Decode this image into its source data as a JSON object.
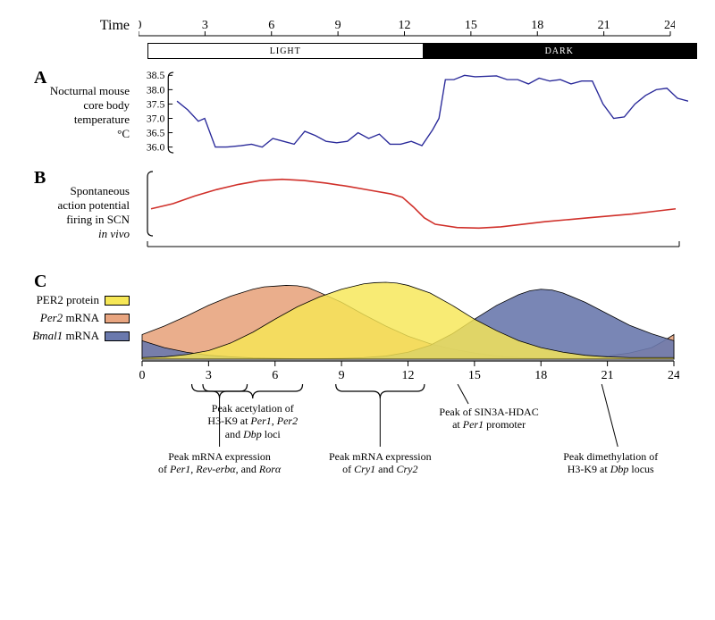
{
  "time_axis": {
    "label": "Time",
    "ticks": [
      0,
      3,
      6,
      9,
      12,
      15,
      18,
      21,
      24
    ],
    "xlim": [
      0,
      24
    ]
  },
  "lightdark": {
    "light_label": "LIGHT",
    "dark_label": "DARK"
  },
  "panelA": {
    "letter": "A",
    "label_l1": "Nocturnal mouse",
    "label_l2": "core body",
    "label_l3": "temperature",
    "label_l4": "°C",
    "yticks": [
      36.0,
      36.5,
      37.0,
      37.5,
      38.0,
      38.5
    ],
    "ylim": [
      35.8,
      38.6
    ],
    "line_color": "#2a2a9a",
    "series": [
      [
        0,
        37.6
      ],
      [
        0.5,
        37.3
      ],
      [
        1,
        36.9
      ],
      [
        1.3,
        37.0
      ],
      [
        1.8,
        36.0
      ],
      [
        2.3,
        36.0
      ],
      [
        3,
        36.05
      ],
      [
        3.5,
        36.1
      ],
      [
        4,
        36.0
      ],
      [
        4.5,
        36.3
      ],
      [
        5,
        36.2
      ],
      [
        5.5,
        36.1
      ],
      [
        6,
        36.55
      ],
      [
        6.5,
        36.4
      ],
      [
        7,
        36.2
      ],
      [
        7.5,
        36.15
      ],
      [
        8,
        36.2
      ],
      [
        8.5,
        36.5
      ],
      [
        9,
        36.3
      ],
      [
        9.5,
        36.45
      ],
      [
        10,
        36.1
      ],
      [
        10.5,
        36.1
      ],
      [
        11,
        36.2
      ],
      [
        11.5,
        36.05
      ],
      [
        12,
        36.6
      ],
      [
        12.3,
        37.0
      ],
      [
        12.6,
        38.35
      ],
      [
        13,
        38.35
      ],
      [
        13.5,
        38.5
      ],
      [
        14,
        38.45
      ],
      [
        15,
        38.48
      ],
      [
        15.5,
        38.35
      ],
      [
        16,
        38.35
      ],
      [
        16.5,
        38.2
      ],
      [
        17,
        38.4
      ],
      [
        17.5,
        38.3
      ],
      [
        18,
        38.35
      ],
      [
        18.5,
        38.2
      ],
      [
        19,
        38.3
      ],
      [
        19.5,
        38.3
      ],
      [
        20,
        37.5
      ],
      [
        20.5,
        37.0
      ],
      [
        21,
        37.05
      ],
      [
        21.5,
        37.5
      ],
      [
        22,
        37.8
      ],
      [
        22.5,
        38.0
      ],
      [
        23,
        38.05
      ],
      [
        23.5,
        37.7
      ],
      [
        24,
        37.6
      ]
    ]
  },
  "panelB": {
    "letter": "B",
    "label_l1": "Spontaneous",
    "label_l2": "action potential",
    "label_l3": "firing in SCN",
    "label_l4": "in vivo",
    "ylim": [
      0,
      1
    ],
    "line_color": "#d0302a",
    "series": [
      [
        0,
        0.42
      ],
      [
        1,
        0.5
      ],
      [
        2,
        0.62
      ],
      [
        3,
        0.72
      ],
      [
        4,
        0.8
      ],
      [
        5,
        0.86
      ],
      [
        6,
        0.88
      ],
      [
        7,
        0.86
      ],
      [
        8,
        0.82
      ],
      [
        9,
        0.77
      ],
      [
        10,
        0.71
      ],
      [
        11,
        0.65
      ],
      [
        11.5,
        0.6
      ],
      [
        12,
        0.45
      ],
      [
        12.5,
        0.28
      ],
      [
        13,
        0.18
      ],
      [
        14,
        0.13
      ],
      [
        15,
        0.12
      ],
      [
        16,
        0.14
      ],
      [
        17,
        0.18
      ],
      [
        18,
        0.22
      ],
      [
        19,
        0.25
      ],
      [
        20,
        0.28
      ],
      [
        21,
        0.31
      ],
      [
        22,
        0.34
      ],
      [
        23,
        0.38
      ],
      [
        24,
        0.42
      ]
    ]
  },
  "panelC": {
    "letter": "C",
    "legend": {
      "per2_protein": {
        "label": "PER2 protein",
        "color": "#f6e756"
      },
      "per2_mrna": {
        "label_pre": "Per2",
        "label_post": " mRNA",
        "color": "#e8a580"
      },
      "bmal1_mrna": {
        "label_pre": "Bmal1",
        "label_post": " mRNA",
        "color": "#6a79ad"
      }
    },
    "ylim": [
      0,
      1
    ],
    "xticks": [
      0,
      3,
      6,
      9,
      12,
      15,
      18,
      21,
      24
    ],
    "curves": {
      "per2_mrna": {
        "color": "#e8a580",
        "points": [
          [
            0,
            0.32
          ],
          [
            1,
            0.43
          ],
          [
            2,
            0.56
          ],
          [
            3,
            0.7
          ],
          [
            4,
            0.82
          ],
          [
            5,
            0.91
          ],
          [
            5.5,
            0.94
          ],
          [
            6,
            0.95
          ],
          [
            6.5,
            0.96
          ],
          [
            7,
            0.955
          ],
          [
            7.5,
            0.93
          ],
          [
            8,
            0.87
          ],
          [
            9,
            0.74
          ],
          [
            10,
            0.58
          ],
          [
            11,
            0.43
          ],
          [
            12,
            0.3
          ],
          [
            13,
            0.2
          ],
          [
            14,
            0.13
          ],
          [
            15,
            0.08
          ],
          [
            16,
            0.04
          ],
          [
            17,
            0.02
          ],
          [
            18,
            0.01
          ],
          [
            19,
            0.01
          ],
          [
            20,
            0.02
          ],
          [
            21,
            0.04
          ],
          [
            22,
            0.08
          ],
          [
            23,
            0.15
          ],
          [
            23.5,
            0.23
          ],
          [
            24,
            0.32
          ]
        ]
      },
      "per2_protein": {
        "color": "#f6e756",
        "points": [
          [
            0,
            0.02
          ],
          [
            1,
            0.03
          ],
          [
            2,
            0.06
          ],
          [
            3,
            0.11
          ],
          [
            4,
            0.21
          ],
          [
            5,
            0.35
          ],
          [
            6,
            0.52
          ],
          [
            7,
            0.68
          ],
          [
            8,
            0.81
          ],
          [
            9,
            0.91
          ],
          [
            10,
            0.98
          ],
          [
            10.5,
            0.995
          ],
          [
            11,
            1.0
          ],
          [
            11.5,
            0.99
          ],
          [
            12,
            0.96
          ],
          [
            13,
            0.86
          ],
          [
            14,
            0.7
          ],
          [
            15,
            0.52
          ],
          [
            16,
            0.37
          ],
          [
            17,
            0.24
          ],
          [
            18,
            0.15
          ],
          [
            19,
            0.09
          ],
          [
            20,
            0.05
          ],
          [
            21,
            0.03
          ],
          [
            22,
            0.02
          ],
          [
            23,
            0.02
          ],
          [
            24,
            0.02
          ]
        ]
      },
      "bmal1_mrna": {
        "color": "#6a79ad",
        "points": [
          [
            0,
            0.24
          ],
          [
            1,
            0.15
          ],
          [
            2,
            0.09
          ],
          [
            3,
            0.05
          ],
          [
            4,
            0.03
          ],
          [
            5,
            0.015
          ],
          [
            6,
            0.01
          ],
          [
            7,
            0.005
          ],
          [
            8,
            0.005
          ],
          [
            9,
            0.01
          ],
          [
            10,
            0.02
          ],
          [
            11,
            0.04
          ],
          [
            12,
            0.09
          ],
          [
            13,
            0.18
          ],
          [
            14,
            0.33
          ],
          [
            15,
            0.52
          ],
          [
            16,
            0.7
          ],
          [
            17,
            0.84
          ],
          [
            17.5,
            0.89
          ],
          [
            18,
            0.91
          ],
          [
            18.5,
            0.9
          ],
          [
            19,
            0.86
          ],
          [
            20,
            0.74
          ],
          [
            21,
            0.59
          ],
          [
            22,
            0.44
          ],
          [
            23,
            0.33
          ],
          [
            24,
            0.24
          ]
        ]
      }
    }
  },
  "annotations": {
    "acetyl": {
      "l1": "Peak acetylation of",
      "l2": "H3-K9 at Per1, Per2",
      "l3": "and Dbp loci",
      "x_range": [
        2.5,
        7.0
      ]
    },
    "mrna_per": {
      "l1": "Peak mRNA expression",
      "l2": "of Per1, Rev-erbα, and Rorα",
      "x_range": [
        2.0,
        4.5
      ]
    },
    "mrna_cry": {
      "l1": "Peak mRNA expression",
      "l2": "of Cry1 and Cry2",
      "x_range": [
        8.5,
        12.5
      ]
    },
    "sin3a": {
      "l1": "Peak of SIN3A-HDAC",
      "l2": "at Per1 promoter",
      "x": 14.0
    },
    "dimeth": {
      "l1": "Peak dimethylation of",
      "l2": "H3-K9 at Dbp locus",
      "x": 20.5
    }
  }
}
